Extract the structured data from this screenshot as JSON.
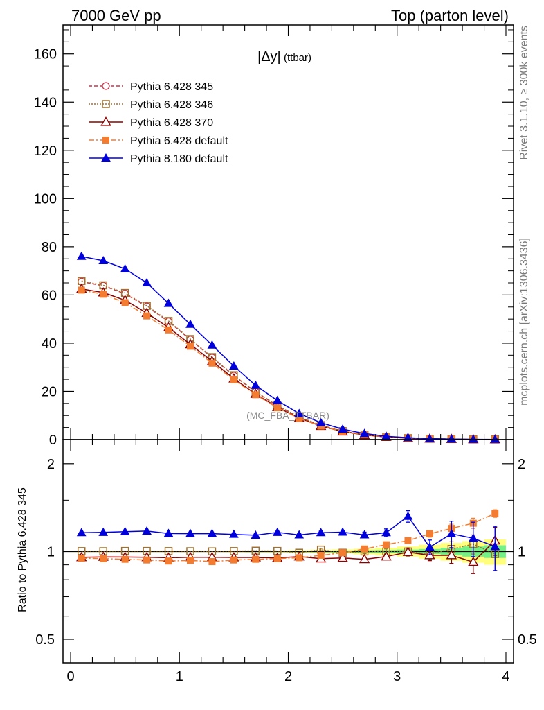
{
  "header": {
    "left": "7000 GeV pp",
    "right": "Top (parton level)"
  },
  "side_labels": {
    "rivet": "Rivet 3.1.10, ≥ 300k events",
    "mcplots": "mcplots.cern.ch [arXiv:1306.3436]"
  },
  "chart_data": [
    {
      "type": "line",
      "title_main": "|Δy|",
      "title_sub": "(ttbar)",
      "annotation": "(MC_FBA_TTBAR)",
      "ylim": [
        0,
        172
      ],
      "xlim": [
        -0.07,
        4.07
      ],
      "yticks": [
        0,
        20,
        40,
        60,
        80,
        100,
        120,
        140,
        160
      ],
      "ytick_labels": [
        "0",
        "20",
        "40",
        "60",
        "80",
        "100",
        "120",
        "140",
        "160"
      ],
      "legend_position": "top-left",
      "x": [
        0.1,
        0.3,
        0.5,
        0.7,
        0.9,
        1.1,
        1.3,
        1.5,
        1.7,
        1.9,
        2.1,
        2.3,
        2.5,
        2.7,
        2.9,
        3.1,
        3.3,
        3.5,
        3.7,
        3.9
      ],
      "series": [
        {
          "name": "Pythia 6.428 345",
          "color": "#c8334a",
          "marker": "circle-open",
          "dash": "5,3",
          "values": [
            65.5,
            63.8,
            60.5,
            55.2,
            49.0,
            41.5,
            34.0,
            26.5,
            19.8,
            14.0,
            9.3,
            5.9,
            3.5,
            2.0,
            1.1,
            0.6,
            0.35,
            0.2,
            0.1,
            0.06
          ]
        },
        {
          "name": "Pythia 6.428 346",
          "color": "#a07030",
          "marker": "square-open",
          "dash": "2,2",
          "values": [
            65.8,
            64.0,
            60.8,
            55.5,
            49.2,
            41.7,
            34.2,
            26.7,
            20.0,
            14.1,
            9.4,
            6.0,
            3.5,
            2.0,
            1.1,
            0.6,
            0.35,
            0.2,
            0.1,
            0.06
          ]
        },
        {
          "name": "Pythia 6.428 370",
          "color": "#8b0000",
          "marker": "triangle-open",
          "dash": "",
          "values": [
            62.5,
            61.0,
            57.8,
            52.5,
            46.5,
            39.5,
            32.5,
            25.3,
            18.9,
            13.4,
            8.9,
            5.6,
            3.3,
            1.9,
            1.05,
            0.58,
            0.33,
            0.19,
            0.09,
            0.06
          ]
        },
        {
          "name": "Pythia 6.428 default",
          "color": "#f47c30",
          "marker": "square-filled",
          "dash": "8,3,2,3",
          "values": [
            62.0,
            60.3,
            56.8,
            51.3,
            45.5,
            38.7,
            31.7,
            24.8,
            18.6,
            13.2,
            8.8,
            5.6,
            3.4,
            2.0,
            1.15,
            0.66,
            0.4,
            0.24,
            0.12,
            0.08
          ]
        },
        {
          "name": "Pythia 8.180 default",
          "color": "#0000dd",
          "marker": "triangle-filled",
          "dash": "",
          "values": [
            76.0,
            74.2,
            70.8,
            65.0,
            56.5,
            47.8,
            39.2,
            30.5,
            22.5,
            16.2,
            10.8,
            7.0,
            4.3,
            2.5,
            1.35,
            0.8,
            0.4,
            0.23,
            0.12,
            0.06
          ]
        }
      ]
    },
    {
      "type": "line",
      "ylabel": "Ratio to Pythia 6.428 345",
      "scale": "log",
      "ylim": [
        0.415,
        2.42
      ],
      "yticks": [
        0.5,
        1,
        2
      ],
      "ytick_labels": [
        "0.5",
        "1",
        "2"
      ],
      "xlim": [
        -0.07,
        4.07
      ],
      "xticks": [
        0,
        1,
        2,
        3,
        4
      ],
      "xtick_labels": [
        "0",
        "1",
        "2",
        "3",
        "4"
      ],
      "x": [
        0.1,
        0.3,
        0.5,
        0.7,
        0.9,
        1.1,
        1.3,
        1.5,
        1.7,
        1.9,
        2.1,
        2.3,
        2.5,
        2.7,
        2.9,
        3.1,
        3.3,
        3.5,
        3.7,
        3.9
      ],
      "reference_uncertainty": {
        "inner": [
          0.003,
          0.003,
          0.003,
          0.003,
          0.003,
          0.003,
          0.003,
          0.003,
          0.004,
          0.004,
          0.005,
          0.006,
          0.008,
          0.01,
          0.012,
          0.015,
          0.02,
          0.03,
          0.04,
          0.05
        ],
        "outer": [
          0.005,
          0.005,
          0.005,
          0.005,
          0.005,
          0.005,
          0.005,
          0.006,
          0.007,
          0.008,
          0.01,
          0.012,
          0.016,
          0.022,
          0.03,
          0.04,
          0.055,
          0.07,
          0.085,
          0.1
        ]
      },
      "series": [
        {
          "name": "Pythia 6.428 346",
          "values": [
            1.003,
            1.002,
            1.004,
            1.004,
            1.003,
            1.002,
            1.001,
            1.003,
            1.006,
            1.004,
            0.99,
            1.015,
            0.99,
            1.0,
            1.0,
            1.0,
            0.98,
            1.02,
            1.06,
            0.98
          ],
          "errors": [
            0.003,
            0.003,
            0.003,
            0.003,
            0.003,
            0.004,
            0.004,
            0.004,
            0.005,
            0.006,
            0.007,
            0.01,
            0.012,
            0.016,
            0.02,
            0.03,
            0.04,
            0.06,
            0.08,
            0.12
          ]
        },
        {
          "name": "Pythia 6.428 370",
          "values": [
            0.955,
            0.958,
            0.957,
            0.955,
            0.952,
            0.955,
            0.955,
            0.954,
            0.954,
            0.95,
            0.96,
            0.945,
            0.95,
            0.94,
            0.96,
            0.995,
            0.97,
            0.97,
            0.92,
            1.09
          ],
          "errors": [
            0.003,
            0.003,
            0.003,
            0.003,
            0.003,
            0.004,
            0.004,
            0.004,
            0.005,
            0.006,
            0.007,
            0.01,
            0.012,
            0.016,
            0.02,
            0.03,
            0.04,
            0.06,
            0.08,
            0.12
          ]
        },
        {
          "name": "Pythia 6.428 default",
          "values": [
            0.948,
            0.945,
            0.94,
            0.935,
            0.927,
            0.932,
            0.923,
            0.935,
            0.94,
            0.945,
            0.952,
            0.97,
            0.99,
            1.02,
            1.055,
            1.09,
            1.15,
            1.2,
            1.25,
            1.35
          ],
          "errors": [
            0.003,
            0.003,
            0.003,
            0.003,
            0.003,
            0.004,
            0.004,
            0.004,
            0.005,
            0.006,
            0.007,
            0.01,
            0.012,
            0.016,
            0.02,
            0.025,
            0.03,
            0.04,
            0.05,
            0.04
          ]
        },
        {
          "name": "Pythia 8.180 default",
          "values": [
            1.16,
            1.163,
            1.17,
            1.175,
            1.153,
            1.152,
            1.152,
            1.145,
            1.137,
            1.163,
            1.14,
            1.16,
            1.165,
            1.14,
            1.16,
            1.32,
            1.035,
            1.15,
            1.11,
            1.04
          ],
          "errors": [
            0.004,
            0.004,
            0.004,
            0.004,
            0.005,
            0.005,
            0.006,
            0.006,
            0.008,
            0.01,
            0.012,
            0.015,
            0.018,
            0.025,
            0.035,
            0.06,
            0.06,
            0.12,
            0.15,
            0.18
          ]
        }
      ]
    }
  ]
}
